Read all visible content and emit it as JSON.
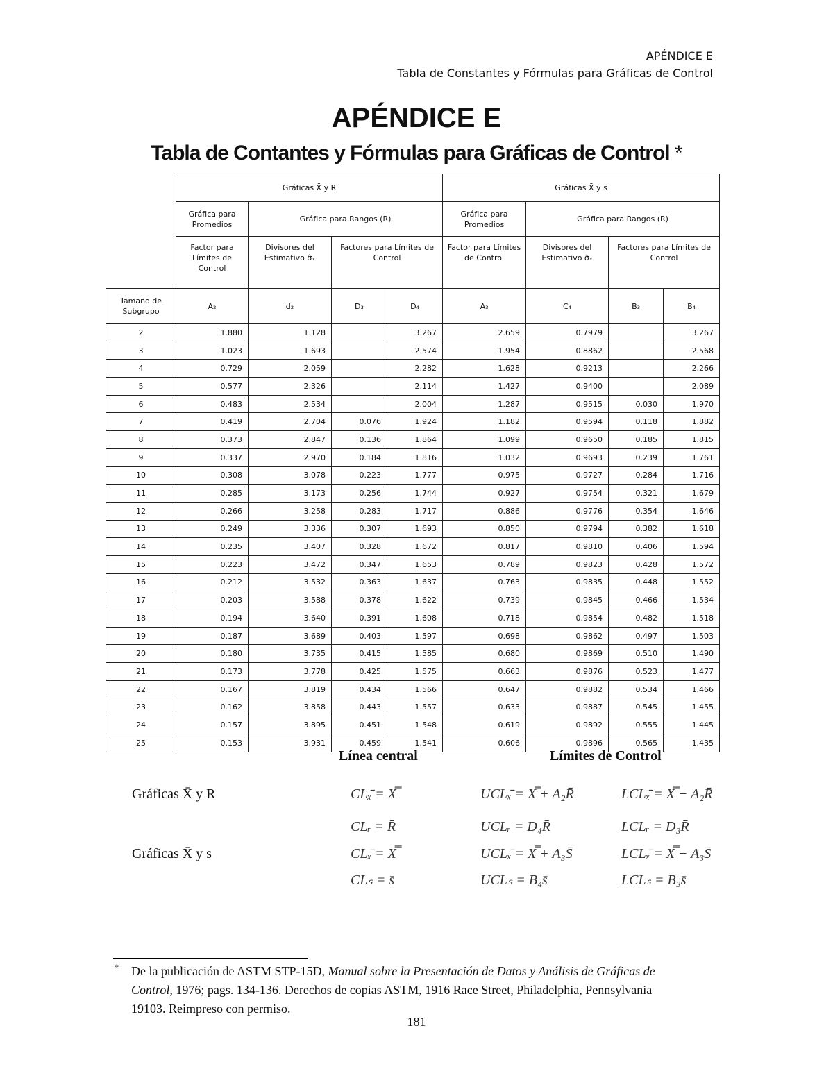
{
  "header": {
    "label": "APÉNDICE E",
    "subtitle": "Tabla de Constantes y Fórmulas para Gráficas de Control"
  },
  "title": "APÉNDICE E",
  "heading": "Tabla de Contantes y Fórmulas para Gráficas de Control",
  "heading_mark": "*",
  "table": {
    "groups": [
      "Gráficas X̄ y R",
      "Gráficas X̄ y s"
    ],
    "subgroups": [
      "Gráfica para Promedios",
      "Gráfica para Rangos (R)",
      "Gráfica para Promedios",
      "Gráfica para Rangos (R)"
    ],
    "factors": [
      "Factor para Límites de Control",
      "Divisores del Estimativo σ̂ₓ",
      "Factores para Límites de Control",
      "Factor para Límites de Control",
      "Divisores del Estimativo σ̂ₓ",
      "Factores para Límites de Control"
    ],
    "columns": [
      "Tamaño de Subgrupo",
      "A₂",
      "d₂",
      "D₃",
      "D₄",
      "A₃",
      "C₄",
      "B₃",
      "B₄"
    ],
    "rows": [
      [
        "2",
        "1.880",
        "1.128",
        null,
        "3.267",
        "2.659",
        "0.7979",
        null,
        "3.267"
      ],
      [
        "3",
        "1.023",
        "1.693",
        null,
        "2.574",
        "1.954",
        "0.8862",
        null,
        "2.568"
      ],
      [
        "4",
        "0.729",
        "2.059",
        null,
        "2.282",
        "1.628",
        "0.9213",
        null,
        "2.266"
      ],
      [
        "5",
        "0.577",
        "2.326",
        null,
        "2.114",
        "1.427",
        "0.9400",
        null,
        "2.089"
      ],
      [
        "6",
        "0.483",
        "2.534",
        null,
        "2.004",
        "1.287",
        "0.9515",
        "0.030",
        "1.970"
      ],
      [
        "7",
        "0.419",
        "2.704",
        "0.076",
        "1.924",
        "1.182",
        "0.9594",
        "0.118",
        "1.882"
      ],
      [
        "8",
        "0.373",
        "2.847",
        "0.136",
        "1.864",
        "1.099",
        "0.9650",
        "0.185",
        "1.815"
      ],
      [
        "9",
        "0.337",
        "2.970",
        "0.184",
        "1.816",
        "1.032",
        "0.9693",
        "0.239",
        "1.761"
      ],
      [
        "10",
        "0.308",
        "3.078",
        "0.223",
        "1.777",
        "0.975",
        "0.9727",
        "0.284",
        "1.716"
      ],
      [
        "11",
        "0.285",
        "3.173",
        "0.256",
        "1.744",
        "0.927",
        "0.9754",
        "0.321",
        "1.679"
      ],
      [
        "12",
        "0.266",
        "3.258",
        "0.283",
        "1.717",
        "0.886",
        "0.9776",
        "0.354",
        "1.646"
      ],
      [
        "13",
        "0.249",
        "3.336",
        "0.307",
        "1.693",
        "0.850",
        "0.9794",
        "0.382",
        "1.618"
      ],
      [
        "14",
        "0.235",
        "3.407",
        "0.328",
        "1.672",
        "0.817",
        "0.9810",
        "0.406",
        "1.594"
      ],
      [
        "15",
        "0.223",
        "3.472",
        "0.347",
        "1.653",
        "0.789",
        "0.9823",
        "0.428",
        "1.572"
      ],
      [
        "16",
        "0.212",
        "3.532",
        "0.363",
        "1.637",
        "0.763",
        "0.9835",
        "0.448",
        "1.552"
      ],
      [
        "17",
        "0.203",
        "3.588",
        "0.378",
        "1.622",
        "0.739",
        "0.9845",
        "0.466",
        "1.534"
      ],
      [
        "18",
        "0.194",
        "3.640",
        "0.391",
        "1.608",
        "0.718",
        "0.9854",
        "0.482",
        "1.518"
      ],
      [
        "19",
        "0.187",
        "3.689",
        "0.403",
        "1.597",
        "0.698",
        "0.9862",
        "0.497",
        "1.503"
      ],
      [
        "20",
        "0.180",
        "3.735",
        "0.415",
        "1.585",
        "0.680",
        "0.9869",
        "0.510",
        "1.490"
      ],
      [
        "21",
        "0.173",
        "3.778",
        "0.425",
        "1.575",
        "0.663",
        "0.9876",
        "0.523",
        "1.477"
      ],
      [
        "22",
        "0.167",
        "3.819",
        "0.434",
        "1.566",
        "0.647",
        "0.9882",
        "0.534",
        "1.466"
      ],
      [
        "23",
        "0.162",
        "3.858",
        "0.443",
        "1.557",
        "0.633",
        "0.9887",
        "0.545",
        "1.455"
      ],
      [
        "24",
        "0.157",
        "3.895",
        "0.451",
        "1.548",
        "0.619",
        "0.9892",
        "0.555",
        "1.445"
      ],
      [
        "25",
        "0.153",
        "3.931",
        "0.459",
        "1.541",
        "0.606",
        "0.9896",
        "0.565",
        "1.435"
      ]
    ]
  },
  "formulas": {
    "headers": [
      "Línea central",
      "Límites de Control"
    ],
    "rows": [
      [
        "Gráficas X̄ y R",
        "CLₓ̄ = X̿",
        "UCLₓ̄ = X̿ + A₂R̄",
        "LCLₓ̄ = X̿ − A₂R̄"
      ],
      [
        null,
        "CLᵣ = R̄",
        "UCLᵣ = D₄R̄",
        "LCLᵣ = D₃R̄"
      ],
      [
        "Gráficas X̄ y s",
        "CLₓ̄ = X̿",
        "UCLₓ̄ = X̿ + A₃S̄",
        "LCLₓ̄ = X̿ − A₃S̄"
      ],
      [
        null,
        "CLₛ = s̄",
        "UCLₛ = B₄s̄",
        "LCLₛ = B₃s̄"
      ]
    ]
  },
  "footnote": {
    "mark": "*",
    "text_before": "De la publicación de ASTM STP-15D, ",
    "text_italic": "Manual sobre la Presentación de Datos y Análisis de Gráficas de Control",
    "text_after": ", 1976; pags. 134-136. Derechos de copias ASTM, 1916 Race Street, Philadelphia, Pennsylvania 19103. Reimpreso con permiso."
  },
  "page_number": "181"
}
